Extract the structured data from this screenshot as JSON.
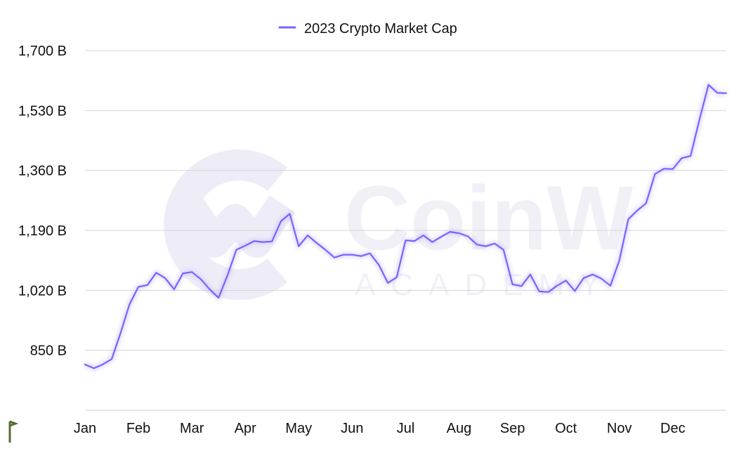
{
  "watermark": {
    "brand": "CoinW",
    "sub": "ACADEMY"
  },
  "chart_data": {
    "type": "line",
    "legend": {
      "position": "top-center"
    },
    "grid": true,
    "y_ticks": [
      {
        "value": 850,
        "label": "850 B"
      },
      {
        "value": 1020,
        "label": "1,020 B"
      },
      {
        "value": 1190,
        "label": "1,190 B"
      },
      {
        "value": 1360,
        "label": "1,360 B"
      },
      {
        "value": 1530,
        "label": "1,530 B"
      },
      {
        "value": 1700,
        "label": "1,700 B"
      }
    ],
    "ylim": [
      680,
      1700
    ],
    "xlim": [
      0,
      48
    ],
    "x_ticks": [
      {
        "value": 0,
        "label": "Jan"
      },
      {
        "value": 4,
        "label": "Feb"
      },
      {
        "value": 8,
        "label": "Mar"
      },
      {
        "value": 12,
        "label": "Apr"
      },
      {
        "value": 16,
        "label": "May"
      },
      {
        "value": 20,
        "label": "Jun"
      },
      {
        "value": 24,
        "label": "Jul"
      },
      {
        "value": 28,
        "label": "Aug"
      },
      {
        "value": 32,
        "label": "Sep"
      },
      {
        "value": 36,
        "label": "Oct"
      },
      {
        "value": 40,
        "label": "Nov"
      },
      {
        "value": 44,
        "label": "Dec"
      }
    ],
    "series": [
      {
        "name": "2023 Crypto Market Cap",
        "color": "#7b61ff",
        "x": [
          0,
          0.67,
          1.33,
          2,
          2.67,
          3.33,
          4,
          4.67,
          5.33,
          6,
          6.67,
          7.33,
          8,
          8.67,
          9.33,
          10,
          10.67,
          11.33,
          12,
          12.67,
          13.33,
          14,
          14.67,
          15.33,
          16,
          16.67,
          17.33,
          18,
          18.67,
          19.33,
          20,
          20.67,
          21.33,
          22,
          22.67,
          23.33,
          24,
          24.67,
          25.33,
          26,
          26.67,
          27.33,
          28,
          28.67,
          29.33,
          30,
          30.67,
          31.33,
          32,
          32.67,
          33.33,
          34,
          34.67,
          35.33,
          36,
          36.67,
          37.33,
          38,
          38.67,
          39.33,
          40,
          40.67,
          41.33,
          42,
          42.67,
          43.33,
          44,
          44.67,
          45.33,
          46,
          46.67,
          47.33,
          48
        ],
        "y": [
          810,
          799,
          810,
          825,
          900,
          980,
          1030,
          1035,
          1070,
          1055,
          1023,
          1068,
          1072,
          1052,
          1023,
          999,
          1063,
          1135,
          1147,
          1160,
          1157,
          1159,
          1216,
          1237,
          1145,
          1176,
          1155,
          1135,
          1113,
          1121,
          1121,
          1117,
          1125,
          1092,
          1041,
          1057,
          1162,
          1160,
          1176,
          1157,
          1172,
          1186,
          1182,
          1173,
          1150,
          1145,
          1153,
          1135,
          1037,
          1032,
          1065,
          1017,
          1015,
          1033,
          1048,
          1018,
          1055,
          1065,
          1053,
          1033,
          1105,
          1222,
          1246,
          1267,
          1350,
          1365,
          1364,
          1395,
          1401,
          1505,
          1603,
          1580,
          1579
        ]
      }
    ]
  }
}
